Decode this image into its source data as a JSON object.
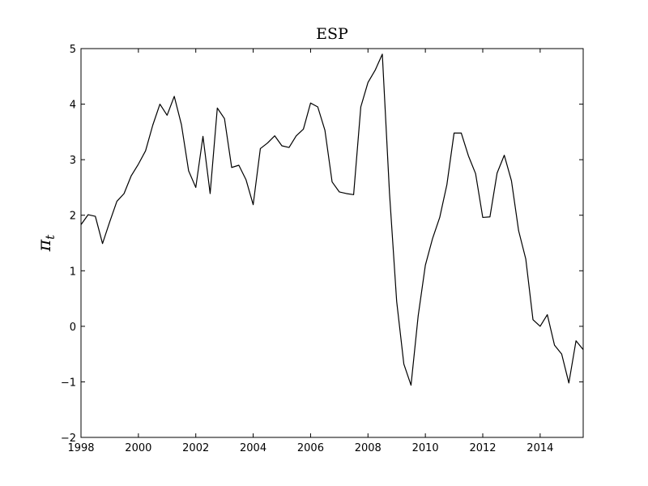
{
  "chart_data": {
    "type": "line",
    "title": "ESP",
    "xlabel": "",
    "ylabel": "π",
    "ylabel_subscript": "t",
    "xlim": [
      1998,
      2015.5
    ],
    "ylim": [
      -2,
      5
    ],
    "xticks": [
      1998,
      2000,
      2002,
      2004,
      2006,
      2008,
      2010,
      2012,
      2014
    ],
    "yticks": [
      -2,
      -1,
      0,
      1,
      2,
      3,
      4,
      5
    ],
    "xtick_labels": [
      "1998",
      "2000",
      "2002",
      "2004",
      "2006",
      "2008",
      "2010",
      "2012",
      "2014"
    ],
    "ytick_labels": [
      "−2",
      "−1",
      "0",
      "1",
      "2",
      "3",
      "4",
      "5"
    ],
    "grid": false,
    "line_color": "#000000",
    "series": [
      {
        "x": [
          1998.0,
          1998.25,
          1998.5,
          1998.75,
          1999.0,
          1999.25,
          1999.5,
          1999.75,
          2000.0,
          2000.25,
          2000.5,
          2000.75,
          2001.0,
          2001.25,
          2001.5,
          2001.75,
          2002.0,
          2002.25,
          2002.5,
          2002.75,
          2003.0,
          2003.25,
          2003.5,
          2003.75,
          2004.0,
          2004.25,
          2004.5,
          2004.75,
          2005.0,
          2005.25,
          2005.5,
          2005.75,
          2006.0,
          2006.25,
          2006.5,
          2006.75,
          2007.0,
          2007.25,
          2007.5,
          2007.75,
          2008.0,
          2008.25,
          2008.5,
          2008.75,
          2009.0,
          2009.25,
          2009.5,
          2009.75,
          2010.0,
          2010.25,
          2010.5,
          2010.75,
          2011.0,
          2011.25,
          2011.5,
          2011.75,
          2012.0,
          2012.25,
          2012.5,
          2012.75,
          2013.0,
          2013.25,
          2013.5,
          2013.75,
          2014.0,
          2014.25,
          2014.5,
          2014.75,
          2015.0,
          2015.25,
          2015.5
        ],
        "y": [
          1.83,
          2.01,
          1.98,
          1.49,
          1.88,
          2.25,
          2.39,
          2.71,
          2.92,
          3.16,
          3.62,
          4.0,
          3.8,
          4.14,
          3.63,
          2.8,
          2.5,
          3.42,
          2.39,
          3.93,
          3.74,
          2.86,
          2.9,
          2.64,
          2.19,
          3.2,
          3.3,
          3.43,
          3.25,
          3.22,
          3.43,
          3.55,
          4.02,
          3.95,
          3.53,
          2.6,
          2.42,
          2.39,
          2.37,
          3.95,
          4.39,
          4.61,
          4.9,
          2.4,
          0.45,
          -0.68,
          -1.06,
          0.19,
          1.1,
          1.58,
          1.96,
          2.55,
          3.48,
          3.48,
          3.07,
          2.75,
          1.96,
          1.97,
          2.76,
          3.08,
          2.62,
          1.72,
          1.21,
          0.12,
          0.0,
          0.21,
          -0.34,
          -0.5,
          -1.02,
          -0.26,
          -0.42
        ]
      }
    ]
  }
}
